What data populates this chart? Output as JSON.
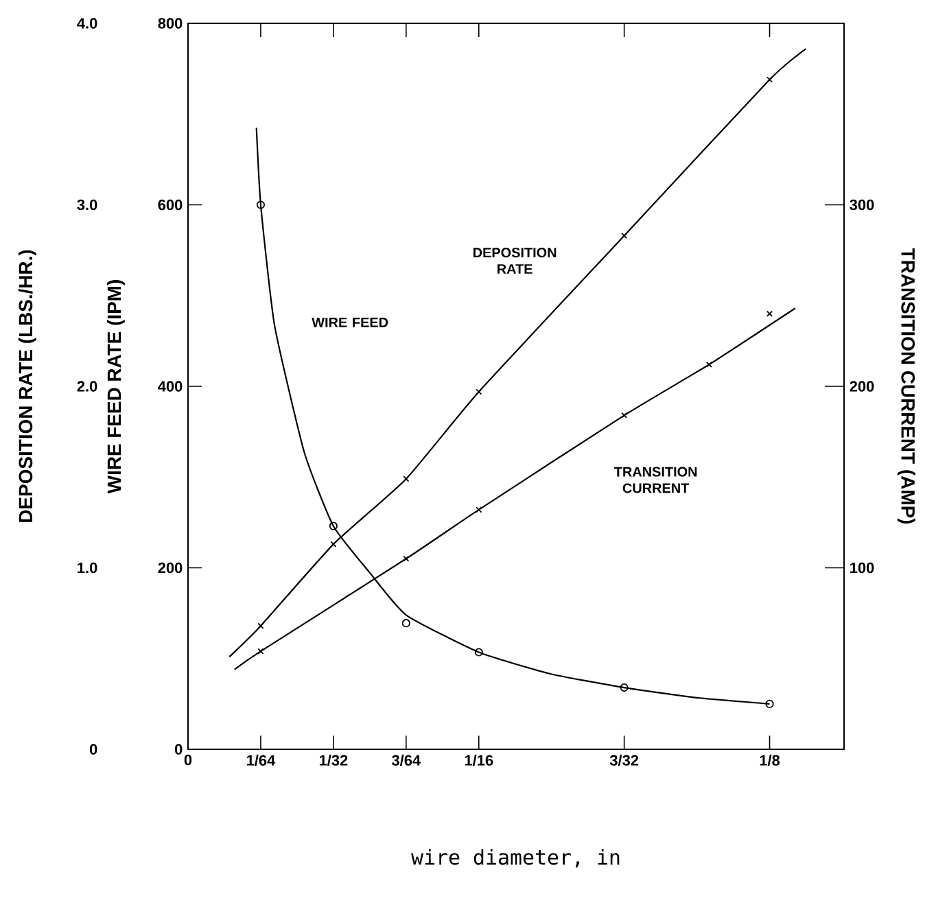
{
  "chart_data": {
    "type": "line",
    "xlabel": "wire diameter, in",
    "ylabel": "WIRE FEED RATE (IPM)",
    "y2label": "TRANSITION CURRENT (AMP)",
    "y3label": "DEPOSITION RATE (LBS./HR.)",
    "xlim": [
      0,
      0.141
    ],
    "xticks": [
      0,
      {
        "value": 0.015625,
        "label": "1/64"
      },
      {
        "value": 0.03125,
        "label": "1/32"
      },
      {
        "value": 0.046875,
        "label": "3/64"
      },
      {
        "value": 0.0625,
        "label": "1/16"
      },
      {
        "value": 0.09375,
        "label": "3/32"
      },
      {
        "value": 0.125,
        "label": "1/8"
      }
    ],
    "ylim": [
      0,
      800
    ],
    "yticks": [
      0,
      200,
      400,
      600,
      800
    ],
    "y2lim": [
      0,
      400
    ],
    "y2ticks": [
      100,
      200,
      300
    ],
    "y3lim": [
      0,
      4
    ],
    "y3ticks": [
      0,
      {
        "value": 1,
        "label": "1.0"
      },
      {
        "value": 2,
        "label": "2.0"
      },
      {
        "value": 3,
        "label": "3.0"
      },
      {
        "value": 4,
        "label": "4.0"
      }
    ],
    "series": [
      {
        "type": "scatter",
        "marker": "circle",
        "color": "#000000",
        "x": [
          0.015625,
          0.03125,
          0.046875,
          0.0625,
          0.09375,
          0.125
        ],
        "values": [
          600,
          246,
          139,
          107,
          68,
          50
        ]
      },
      {
        "color": "#000000",
        "x": [
          0.0147,
          0.015625,
          0.0186,
          0.025,
          0.03125,
          0.039,
          0.046875,
          0.0625,
          0.078,
          0.09375,
          0.109,
          0.125
        ],
        "values": [
          685,
          600,
          467,
          327,
          246,
          195,
          148,
          107,
          83,
          68,
          57,
          50
        ]
      },
      {
        "type": "scatter",
        "marker": "cross",
        "color": "#000000",
        "axis": "y3",
        "x": [
          0.015625,
          0.03125,
          0.046875,
          0.0625,
          0.09375,
          0.125
        ],
        "values": [
          0.68,
          1.13,
          1.49,
          1.97,
          2.83,
          3.69
        ]
      },
      {
        "color": "#000000",
        "axis": "y3",
        "x": [
          0.0089,
          0.015625,
          0.03125,
          0.046875,
          0.0625,
          0.09375,
          0.125,
          0.1328
        ],
        "values": [
          0.51,
          0.68,
          1.13,
          1.49,
          1.97,
          2.83,
          3.69,
          3.86
        ]
      },
      {
        "type": "scatter",
        "marker": "cross",
        "color": "#000000",
        "axis": "y2",
        "x": [
          0.015625,
          0.046875,
          0.0625,
          0.09375,
          0.112,
          0.125
        ],
        "values": [
          54,
          105,
          132,
          184,
          212,
          240
        ]
      },
      {
        "color": "#000000",
        "axis": "y2",
        "x": [
          0.01,
          0.015625,
          0.046875,
          0.0625,
          0.09375,
          0.112,
          0.1305
        ],
        "values": [
          44,
          54,
          105,
          132,
          184,
          212,
          243
        ]
      }
    ],
    "annotations": [
      "WIRE FEED",
      "DEPOSITION RATE",
      "TRANSITION CURRENT"
    ]
  }
}
